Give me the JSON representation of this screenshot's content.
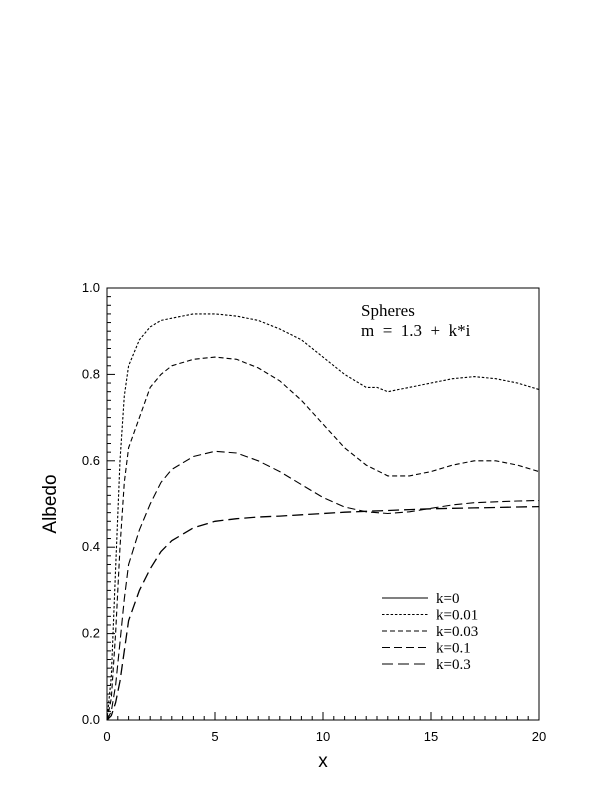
{
  "chart_data": {
    "type": "line",
    "title": "",
    "annotation": [
      "Spheres",
      "m  =  1.3  +  k*i"
    ],
    "xlabel": "x",
    "ylabel": "Albedo",
    "xlim": [
      0,
      20
    ],
    "ylim": [
      0,
      1.0
    ],
    "x_ticks": [
      "0",
      "5",
      "10",
      "15",
      "20"
    ],
    "y_ticks": [
      "0.0",
      "0.2",
      "0.4",
      "0.6",
      "0.8",
      "1.0"
    ],
    "grid": false,
    "legend_position": "lower-right",
    "series": [
      {
        "name": "k=0",
        "dash": "solid",
        "x": [],
        "y": []
      },
      {
        "name": "k=0.01",
        "dash": "dot",
        "x": [
          0,
          0.2,
          0.4,
          0.6,
          0.8,
          1.0,
          1.5,
          2,
          2.5,
          3,
          4,
          5,
          6,
          7,
          8,
          9,
          10,
          11,
          12,
          12.5,
          13,
          13.5,
          14,
          15,
          16,
          17,
          18,
          19,
          20
        ],
        "y": [
          0,
          0.1,
          0.35,
          0.6,
          0.75,
          0.82,
          0.88,
          0.91,
          0.925,
          0.93,
          0.94,
          0.94,
          0.935,
          0.925,
          0.905,
          0.88,
          0.84,
          0.8,
          0.77,
          0.77,
          0.76,
          0.765,
          0.77,
          0.78,
          0.79,
          0.795,
          0.79,
          0.78,
          0.765
        ]
      },
      {
        "name": "k=0.03",
        "dash": "short-dash",
        "x": [
          0,
          0.2,
          0.4,
          0.6,
          0.8,
          1.0,
          1.5,
          2,
          2.5,
          3,
          4,
          5,
          6,
          7,
          8,
          9,
          10,
          11,
          12,
          13,
          14,
          15,
          16,
          17,
          18,
          19,
          20
        ],
        "y": [
          0,
          0.05,
          0.2,
          0.4,
          0.55,
          0.63,
          0.7,
          0.77,
          0.8,
          0.82,
          0.835,
          0.84,
          0.835,
          0.815,
          0.785,
          0.74,
          0.685,
          0.63,
          0.59,
          0.565,
          0.565,
          0.575,
          0.59,
          0.6,
          0.6,
          0.59,
          0.575
        ]
      },
      {
        "name": "k=0.1",
        "dash": "dash",
        "x": [
          0,
          0.2,
          0.4,
          0.6,
          0.8,
          1.0,
          1.5,
          2,
          2.5,
          3,
          4,
          5,
          6,
          7,
          8,
          9,
          10,
          11,
          12,
          13,
          14,
          15,
          16,
          17,
          18,
          19,
          20
        ],
        "y": [
          0,
          0.02,
          0.08,
          0.18,
          0.28,
          0.36,
          0.44,
          0.5,
          0.55,
          0.58,
          0.61,
          0.622,
          0.618,
          0.6,
          0.575,
          0.545,
          0.515,
          0.493,
          0.482,
          0.478,
          0.482,
          0.49,
          0.498,
          0.503,
          0.505,
          0.507,
          0.508
        ]
      },
      {
        "name": "k=0.3",
        "dash": "long-dash",
        "x": [
          0,
          0.2,
          0.4,
          0.6,
          0.8,
          1.0,
          1.5,
          2,
          2.5,
          3,
          4,
          5,
          6,
          7,
          8,
          9,
          10,
          11,
          12,
          13,
          14,
          15,
          16,
          17,
          18,
          19,
          20
        ],
        "y": [
          0,
          0.01,
          0.04,
          0.09,
          0.16,
          0.23,
          0.3,
          0.35,
          0.39,
          0.415,
          0.445,
          0.46,
          0.466,
          0.47,
          0.472,
          0.475,
          0.478,
          0.481,
          0.483,
          0.485,
          0.487,
          0.489,
          0.49,
          0.491,
          0.492,
          0.493,
          0.494
        ]
      }
    ]
  }
}
